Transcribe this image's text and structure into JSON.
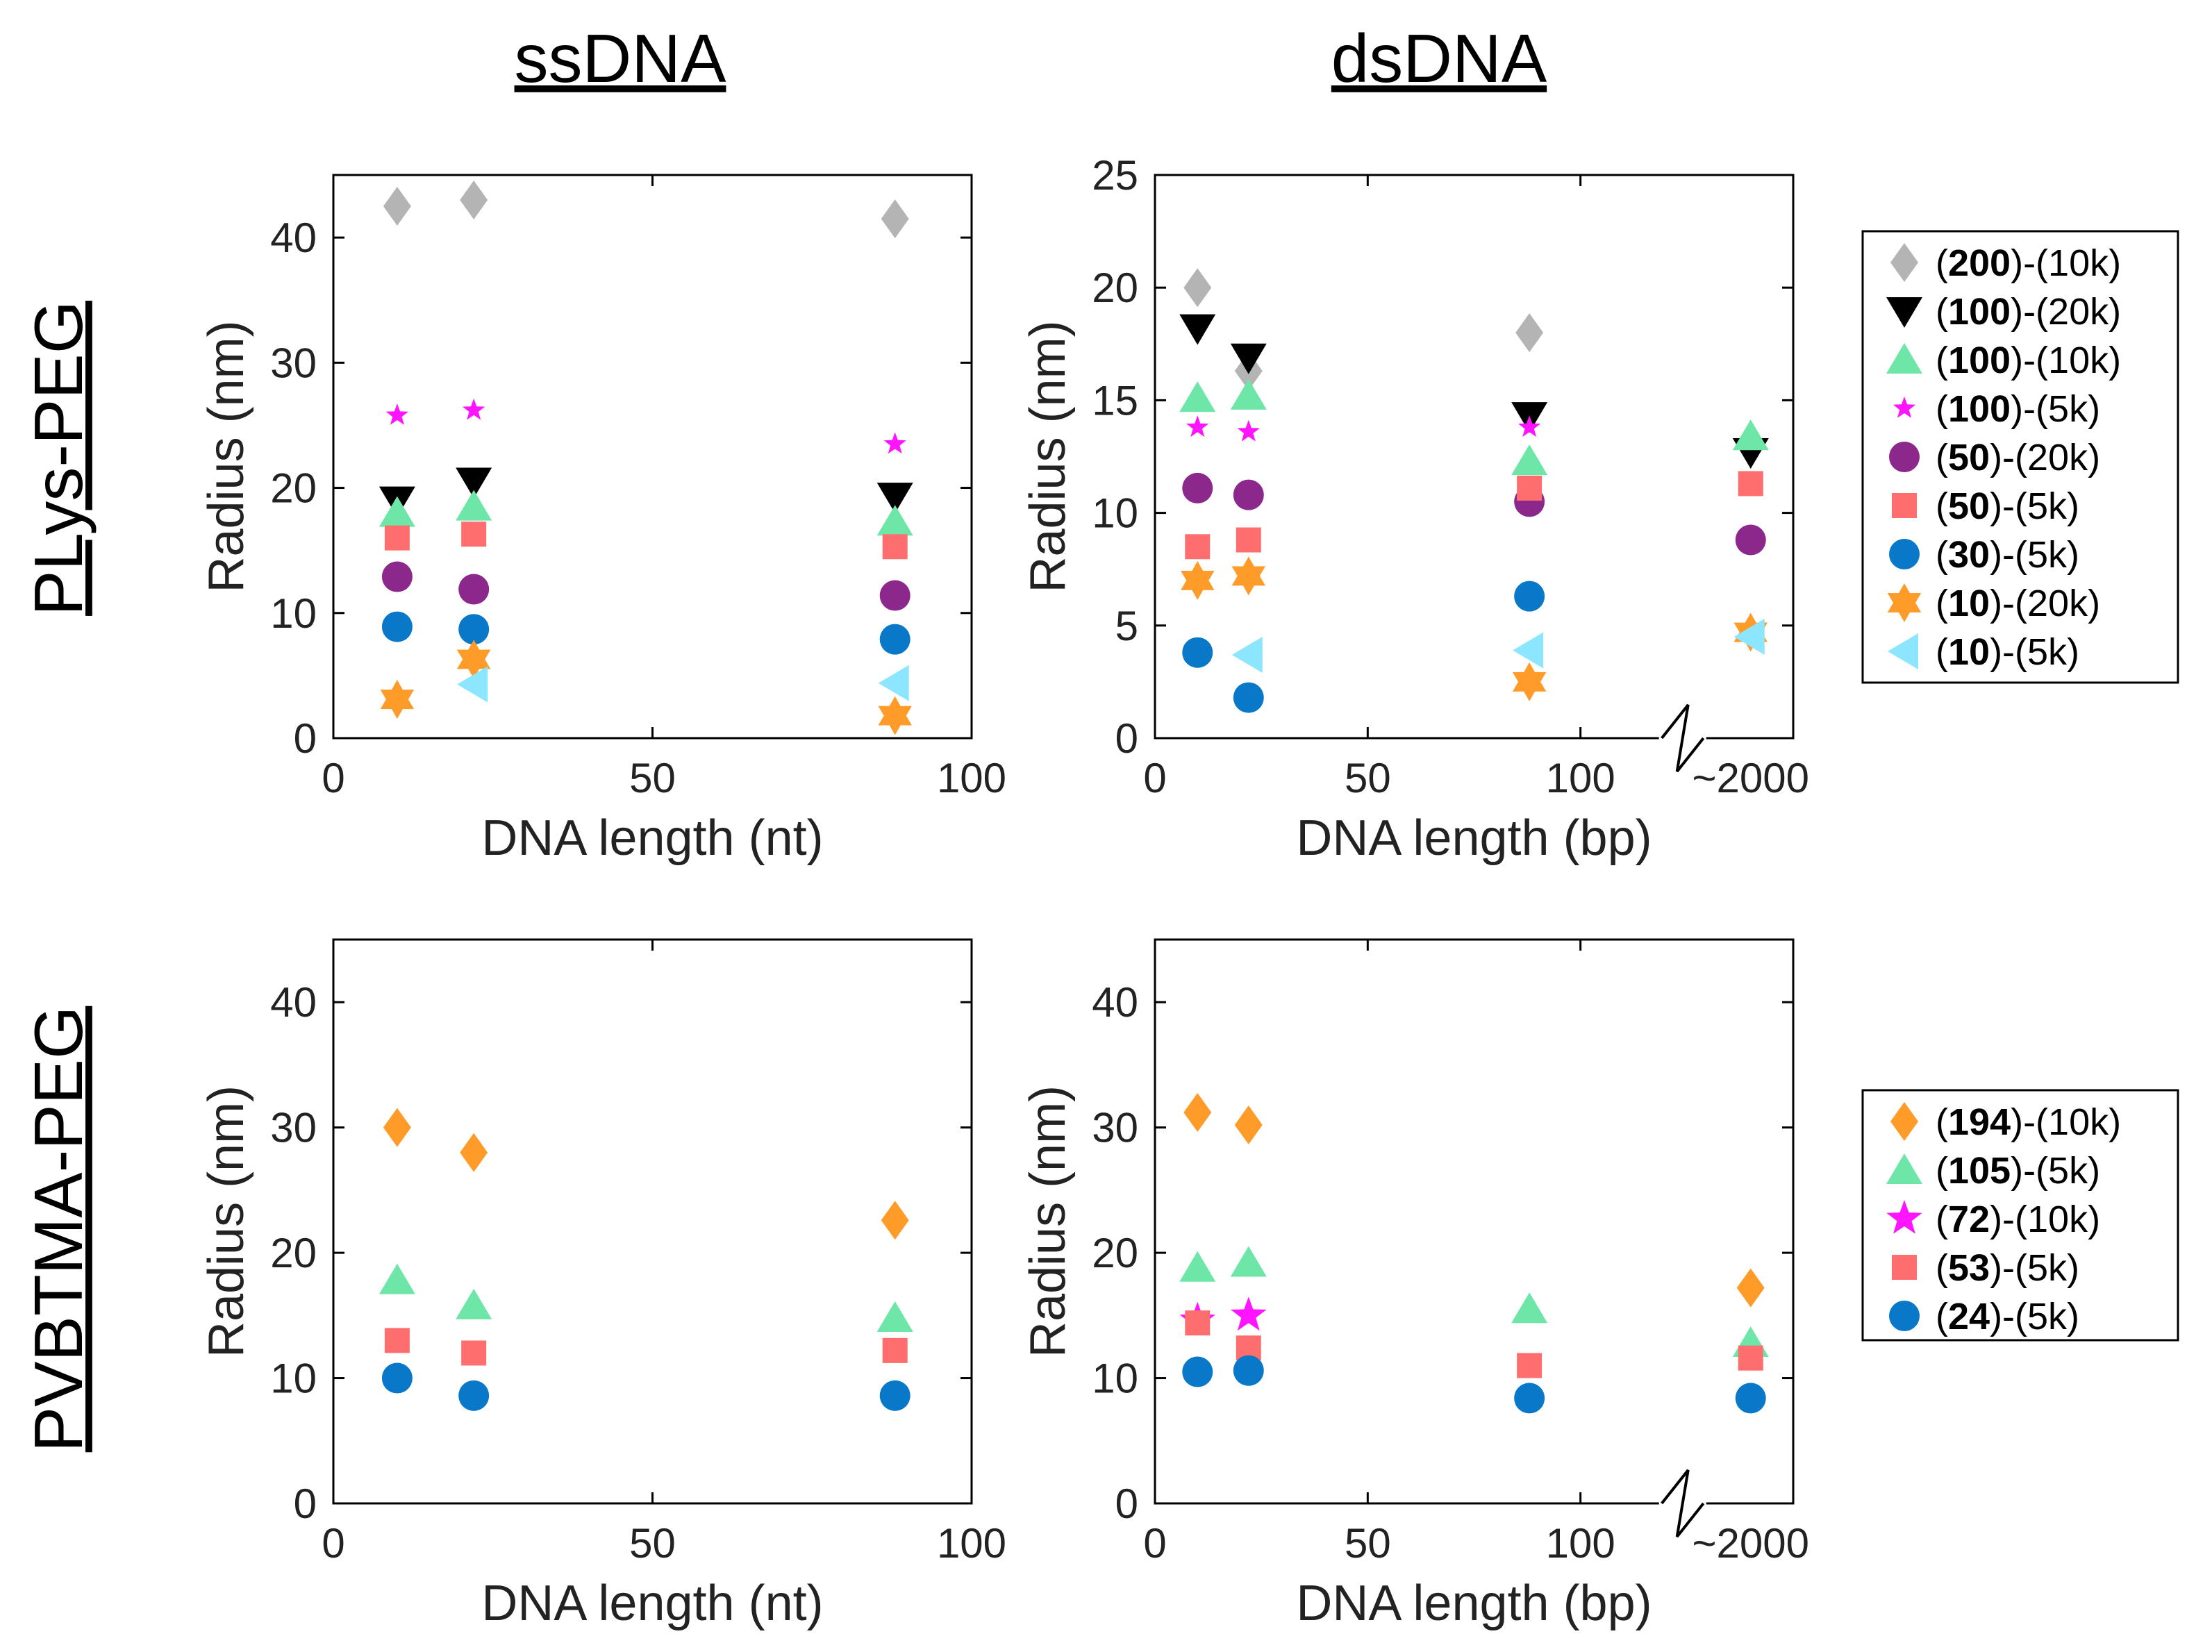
{
  "column_titles": [
    "ssDNA",
    "dsDNA"
  ],
  "row_titles": [
    "PLys-PEG",
    "PVBTMA-PEG"
  ],
  "colors": {
    "gray": "#b4b4b4",
    "black": "#000000",
    "green": "#6ee6a8",
    "magenta": "#ff14ff",
    "purple": "#8c288c",
    "salmon": "#ff6e6e",
    "blue": "#0a78c8",
    "orange": "#ff9b28",
    "cyan": "#8ce6ff"
  },
  "legends": [
    {
      "entries": [
        {
          "bold": "200",
          "rest": "-(10k)",
          "marker": "diamond",
          "color": "gray"
        },
        {
          "bold": "100",
          "rest": "-(20k)",
          "marker": "triangle-down",
          "color": "black"
        },
        {
          "bold": "100",
          "rest": "-(10k)",
          "marker": "triangle-up",
          "color": "green"
        },
        {
          "bold": "100",
          "rest": "-(5k)",
          "marker": "star5-small",
          "color": "magenta"
        },
        {
          "bold": "50",
          "rest": "-(20k)",
          "marker": "circle",
          "color": "purple"
        },
        {
          "bold": "50",
          "rest": "-(5k)",
          "marker": "square",
          "color": "salmon"
        },
        {
          "bold": "30",
          "rest": "-(5k)",
          "marker": "circle",
          "color": "blue"
        },
        {
          "bold": "10",
          "rest": "-(20k)",
          "marker": "hexagram",
          "color": "orange"
        },
        {
          "bold": "10",
          "rest": "-(5k)",
          "marker": "triangle-left",
          "color": "cyan"
        }
      ]
    },
    {
      "entries": [
        {
          "bold": "194",
          "rest": "-(10k)",
          "marker": "diamond",
          "color": "orange"
        },
        {
          "bold": "105",
          "rest": "-(5k)",
          "marker": "triangle-up",
          "color": "green"
        },
        {
          "bold": "72",
          "rest": "-(10k)",
          "marker": "star5",
          "color": "magenta"
        },
        {
          "bold": "53",
          "rest": "-(5k)",
          "marker": "square",
          "color": "salmon"
        },
        {
          "bold": "24",
          "rest": "-(5k)",
          "marker": "circle",
          "color": "blue"
        }
      ]
    }
  ],
  "chart_data": [
    {
      "type": "scatter",
      "panel": "PLys-PEG ssDNA",
      "xlabel": "DNA length (nt)",
      "ylabel": "Radius (nm)",
      "xlim": [
        0,
        100
      ],
      "ylim": [
        0,
        45
      ],
      "xticks": [
        0,
        50,
        100
      ],
      "yticks": [
        0,
        10,
        20,
        30,
        40
      ],
      "series": [
        {
          "name": "(200)-(10k)",
          "marker": "diamond",
          "color": "gray",
          "x": [
            10,
            22,
            88
          ],
          "y": [
            42.5,
            43,
            41.5
          ]
        },
        {
          "name": "(100)-(20k)",
          "marker": "triangle-down",
          "color": "black",
          "x": [
            10,
            22,
            88
          ],
          "y": [
            19,
            20.5,
            19.3
          ]
        },
        {
          "name": "(100)-(10k)",
          "marker": "triangle-up",
          "color": "green",
          "x": [
            10,
            22,
            88
          ],
          "y": [
            18,
            18.5,
            17.3
          ]
        },
        {
          "name": "(100)-(5k)",
          "marker": "star5-small",
          "color": "magenta",
          "x": [
            10,
            22,
            88
          ],
          "y": [
            25.8,
            26.2,
            23.5
          ]
        },
        {
          "name": "(50)-(20k)",
          "marker": "circle",
          "color": "purple",
          "x": [
            10,
            22,
            88
          ],
          "y": [
            12.9,
            11.9,
            11.4
          ]
        },
        {
          "name": "(50)-(5k)",
          "marker": "square",
          "color": "salmon",
          "x": [
            10,
            22,
            88
          ],
          "y": [
            16,
            16.3,
            15.3
          ]
        },
        {
          "name": "(30)-(5k)",
          "marker": "circle",
          "color": "blue",
          "x": [
            10,
            22,
            88
          ],
          "y": [
            8.9,
            8.7,
            7.9
          ]
        },
        {
          "name": "(10)-(20k)",
          "marker": "hexagram",
          "color": "orange",
          "x": [
            10,
            22,
            88
          ],
          "y": [
            3.1,
            6.3,
            1.8
          ]
        },
        {
          "name": "(10)-(5k)",
          "marker": "triangle-left",
          "color": "cyan",
          "x": [
            22,
            88
          ],
          "y": [
            4.3,
            4.4
          ]
        }
      ]
    },
    {
      "type": "scatter",
      "panel": "PLys-PEG dsDNA",
      "xlabel": "DNA length (bp)",
      "ylabel": "Radius (nm)",
      "xlim": [
        0,
        150
      ],
      "ylim": [
        0,
        25
      ],
      "xticks": [
        0,
        50,
        100
      ],
      "extra_xtick": {
        "label": "~2000",
        "position": 140
      },
      "axis_break": true,
      "yticks": [
        0,
        5,
        10,
        15,
        20,
        25
      ],
      "series": [
        {
          "name": "(200)-(10k)",
          "marker": "diamond",
          "color": "gray",
          "x": [
            10,
            22,
            88
          ],
          "y": [
            20,
            16.3,
            18
          ]
        },
        {
          "name": "(100)-(20k)",
          "marker": "triangle-down",
          "color": "black",
          "x": [
            10,
            22,
            88,
            140
          ],
          "y": [
            18.2,
            16.9,
            14.3,
            12.7
          ]
        },
        {
          "name": "(100)-(10k)",
          "marker": "triangle-up",
          "color": "green",
          "x": [
            10,
            22,
            88,
            140
          ],
          "y": [
            15.1,
            15.2,
            12.3,
            13.4
          ]
        },
        {
          "name": "(100)-(5k)",
          "marker": "star5-small",
          "color": "magenta",
          "x": [
            10,
            22,
            88
          ],
          "y": [
            13.8,
            13.6,
            13.8
          ]
        },
        {
          "name": "(50)-(20k)",
          "marker": "circle",
          "color": "purple",
          "x": [
            10,
            22,
            88,
            140
          ],
          "y": [
            11.1,
            10.8,
            10.5,
            8.8
          ]
        },
        {
          "name": "(50)-(5k)",
          "marker": "square",
          "color": "salmon",
          "x": [
            10,
            22,
            88,
            140
          ],
          "y": [
            8.5,
            8.8,
            11.1,
            11.3
          ]
        },
        {
          "name": "(30)-(5k)",
          "marker": "circle",
          "color": "blue",
          "x": [
            10,
            22,
            88
          ],
          "y": [
            3.8,
            1.8,
            6.3
          ]
        },
        {
          "name": "(10)-(20k)",
          "marker": "hexagram",
          "color": "orange",
          "x": [
            10,
            22,
            88,
            140
          ],
          "y": [
            7,
            7.2,
            2.5,
            4.7
          ]
        },
        {
          "name": "(10)-(5k)",
          "marker": "triangle-left",
          "color": "cyan",
          "x": [
            22,
            88,
            140
          ],
          "y": [
            3.7,
            3.9,
            4.5
          ]
        }
      ]
    },
    {
      "type": "scatter",
      "panel": "PVBTMA-PEG ssDNA",
      "xlabel": "DNA length (nt)",
      "ylabel": "Radius (nm)",
      "xlim": [
        0,
        100
      ],
      "ylim": [
        0,
        45
      ],
      "xticks": [
        0,
        50,
        100
      ],
      "yticks": [
        0,
        10,
        20,
        30,
        40
      ],
      "series": [
        {
          "name": "(194)-(10k)",
          "marker": "diamond",
          "color": "orange",
          "x": [
            10,
            22,
            88
          ],
          "y": [
            30,
            28,
            22.6
          ]
        },
        {
          "name": "(105)-(5k)",
          "marker": "triangle-up",
          "color": "green",
          "x": [
            10,
            22,
            88
          ],
          "y": [
            17.8,
            15.8,
            14.8
          ]
        },
        {
          "name": "(53)-(5k)",
          "marker": "square",
          "color": "salmon",
          "x": [
            10,
            22,
            88
          ],
          "y": [
            13,
            12,
            12.2
          ]
        },
        {
          "name": "(24)-(5k)",
          "marker": "circle",
          "color": "blue",
          "x": [
            10,
            22,
            88
          ],
          "y": [
            10,
            8.6,
            8.6
          ]
        }
      ]
    },
    {
      "type": "scatter",
      "panel": "PVBTMA-PEG dsDNA",
      "xlabel": "DNA length (bp)",
      "ylabel": "Radius (nm)",
      "xlim": [
        0,
        150
      ],
      "ylim": [
        0,
        45
      ],
      "xticks": [
        0,
        50,
        100
      ],
      "extra_xtick": {
        "label": "~2000",
        "position": 140
      },
      "axis_break": true,
      "yticks": [
        0,
        10,
        20,
        30,
        40
      ],
      "series": [
        {
          "name": "(194)-(10k)",
          "marker": "diamond",
          "color": "orange",
          "x": [
            10,
            22,
            140
          ],
          "y": [
            31.2,
            30.2,
            17.2
          ]
        },
        {
          "name": "(105)-(5k)",
          "marker": "triangle-up",
          "color": "green",
          "x": [
            10,
            22,
            88,
            140
          ],
          "y": [
            18.8,
            19.2,
            15.5,
            12.8
          ]
        },
        {
          "name": "(72)-(10k)",
          "marker": "star5",
          "color": "magenta",
          "x": [
            10,
            22
          ],
          "y": [
            14.6,
            15
          ]
        },
        {
          "name": "(53)-(5k)",
          "marker": "square",
          "color": "salmon",
          "x": [
            10,
            22,
            88,
            140
          ],
          "y": [
            14.4,
            12.4,
            11,
            11.6
          ]
        },
        {
          "name": "(24)-(5k)",
          "marker": "circle",
          "color": "blue",
          "x": [
            10,
            22,
            88,
            140
          ],
          "y": [
            10.5,
            10.6,
            8.4,
            8.4
          ]
        }
      ]
    }
  ]
}
